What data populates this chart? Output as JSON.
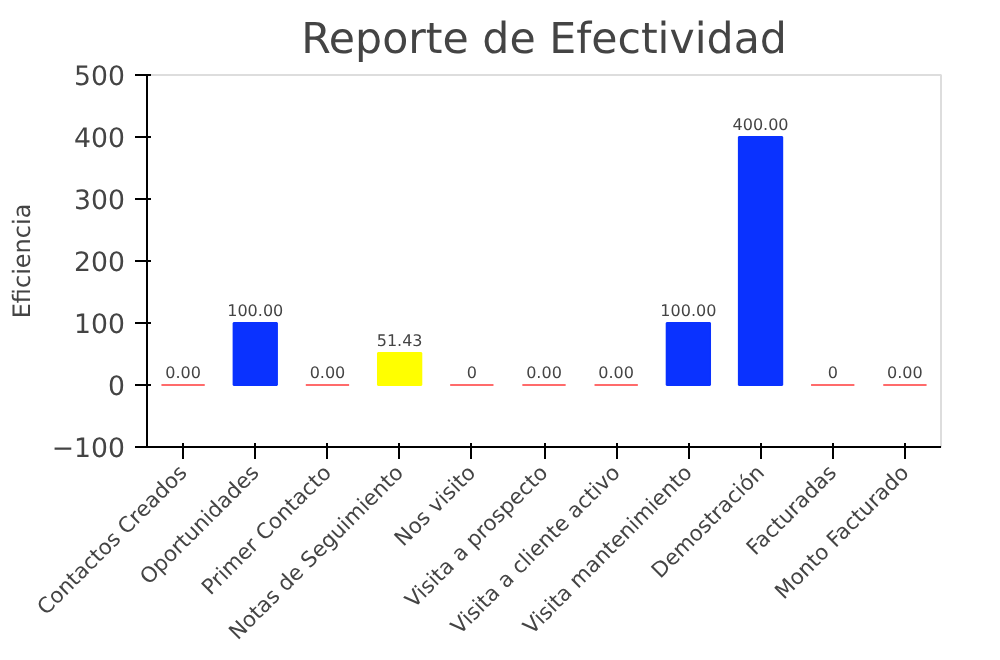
{
  "chart_data": {
    "type": "bar",
    "title": "Reporte de Efectividad",
    "ylabel": "Eficiencia",
    "categories": [
      "Contactos Creados",
      "Oportunidades",
      "Primer Contacto",
      "Notas de Seguimiento",
      "Nos visito",
      "Visita a prospecto",
      "Visita a cliente activo",
      "Visita mantenimiento",
      "Demostración",
      "Facturadas",
      "Monto Facturado"
    ],
    "values": [
      0,
      100,
      0,
      51.43,
      0,
      0,
      0,
      100,
      400,
      0,
      0
    ],
    "colors": [
      "#ff6b6b",
      "#0a32ff",
      "#ff6b6b",
      "#ffff00",
      "#ff6b6b",
      "#ff6b6b",
      "#ff6b6b",
      "#0a32ff",
      "#0a32ff",
      "#ff6b6b",
      "#ff6b6b"
    ],
    "value_labels": [
      "0.00",
      "100.00",
      "0.00",
      "51.43",
      "0",
      "0.00",
      "0.00",
      "100.00",
      "400.00",
      "0",
      "0.00"
    ],
    "ylim": [
      -100,
      500
    ],
    "yticks": [
      -100,
      0,
      100,
      200,
      300,
      400,
      500
    ],
    "grid": false
  }
}
